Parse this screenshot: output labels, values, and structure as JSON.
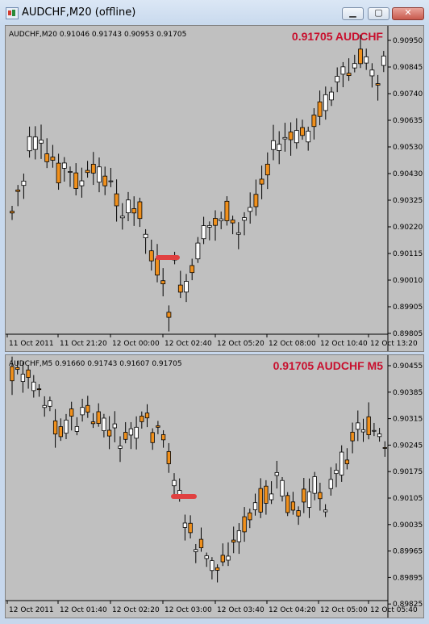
{
  "window": {
    "title": "AUDCHF,M20 (offline)",
    "buttons": [
      "minimize",
      "maximize",
      "close"
    ]
  },
  "colors": {
    "background": "#c0c0c0",
    "bull": "#ffffff",
    "bear": "#f0901c",
    "wick": "#000000",
    "marker": "#e04040",
    "label": "#c8102e"
  },
  "chart1": {
    "info": "AUDCHF,M20  0.91046 0.91743 0.90953 0.91705",
    "corner_label": "0.91705 AUDCHF",
    "y_ticks": [
      "0.90950",
      "0.90845",
      "0.90740",
      "0.90635",
      "0.90530",
      "0.90430",
      "0.90325",
      "0.90220",
      "0.90115",
      "0.90010",
      "0.89905",
      "0.89805"
    ],
    "x_ticks": [
      "11 Oct 2011",
      "11 Oct 21:20",
      "12 Oct 00:00",
      "12 Oct 02:40",
      "12 Oct 05:20",
      "12 Oct 08:00",
      "12 Oct 10:40",
      "12 Oct 13:20"
    ]
  },
  "chart2": {
    "info": "AUDCHF,M5  0.91660 0.91743 0.91607 0.91705",
    "corner_label": "0.91705 AUDCHF M5",
    "y_ticks": [
      "0.90455",
      "0.90385",
      "0.90315",
      "0.90245",
      "0.90175",
      "0.90105",
      "0.90035",
      "0.89965",
      "0.89895",
      "0.89825"
    ],
    "x_ticks": [
      "12 Oct 2011",
      "12 Oct 01:40",
      "12 Oct 02:20",
      "12 Oct 03:00",
      "12 Oct 03:40",
      "12 Oct 04:20",
      "12 Oct 05:00",
      "12 Oct 05:40"
    ]
  }
}
